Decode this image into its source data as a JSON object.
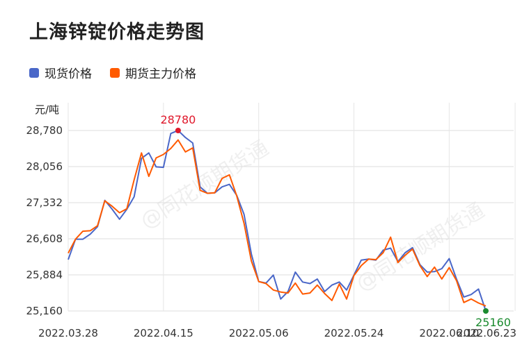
{
  "title": "上海锌锭价格走势图",
  "unit": "元/吨",
  "watermark": "@同花顺期货通",
  "colors": {
    "spot": "#4a67c8",
    "futures": "#ff5a00",
    "max_label": "#e0182b",
    "min_label": "#1a8a2e"
  },
  "chart_data": {
    "type": "line",
    "title": "上海锌锭价格走势图",
    "ylabel": "元/吨",
    "ylim": [
      25160,
      28780
    ],
    "yticks": [
      "28,780",
      "28,056",
      "27,332",
      "26,608",
      "25,884",
      "25,160"
    ],
    "ytick_values": [
      28780,
      28056,
      27332,
      26608,
      25884,
      25160
    ],
    "xticks": [
      "2022.03.28",
      "2022.04.15",
      "2022.05.06",
      "2022.05.24",
      "2022.06.10",
      "2022.06.23"
    ],
    "xtick_index": [
      0,
      13,
      26,
      39,
      52,
      61
    ],
    "grid": true,
    "legend_position": "top-left",
    "series": [
      {
        "name": "现货价格",
        "color": "#4a67c8",
        "values": [
          26190,
          26600,
          26600,
          26700,
          26850,
          27380,
          27200,
          27000,
          27200,
          27450,
          28220,
          28330,
          28050,
          28040,
          28720,
          28780,
          28640,
          28530,
          27650,
          27520,
          27530,
          27650,
          27700,
          27480,
          27100,
          26300,
          25750,
          25720,
          25880,
          25400,
          25550,
          25940,
          25740,
          25710,
          25800,
          25550,
          25680,
          25740,
          25580,
          25880,
          26180,
          26200,
          26180,
          26380,
          26420,
          26150,
          26330,
          26430,
          26090,
          25940,
          25950,
          26010,
          26210,
          25800,
          25440,
          25490,
          25600,
          25160
        ]
      },
      {
        "name": "期货主力价格",
        "color": "#ff5a00",
        "values": [
          26320,
          26600,
          26760,
          26770,
          26870,
          27370,
          27260,
          27130,
          27210,
          27790,
          28330,
          27860,
          28230,
          28300,
          28420,
          28590,
          28350,
          28430,
          27580,
          27520,
          27530,
          27820,
          27890,
          27470,
          26920,
          26160,
          25750,
          25710,
          25580,
          25540,
          25520,
          25720,
          25500,
          25520,
          25680,
          25510,
          25370,
          25700,
          25400,
          25870,
          26070,
          26200,
          26190,
          26330,
          26640,
          26130,
          26280,
          26400,
          26070,
          25850,
          26040,
          25800,
          26030,
          25770,
          25330,
          25400,
          25320,
          25260
        ]
      }
    ],
    "annotations": [
      {
        "text": "28780",
        "series": 0,
        "index": 15,
        "kind": "max"
      },
      {
        "text": "25160",
        "series": 0,
        "index": 57,
        "kind": "min"
      }
    ]
  }
}
